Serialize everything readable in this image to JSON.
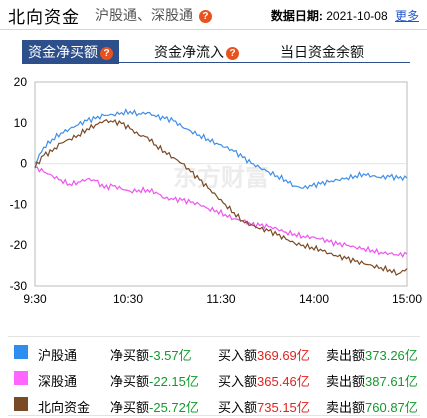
{
  "header": {
    "title": "北向资金",
    "links": "沪股通、深股通",
    "date_label": "数据日期:",
    "date_value": "2021-10-08",
    "more": "更多"
  },
  "tabs": [
    {
      "label": "资金净买额",
      "has_help": true,
      "active": true
    },
    {
      "label": "资金净流入",
      "has_help": true,
      "active": false
    },
    {
      "label": "当日资金余额",
      "has_help": false,
      "active": false
    }
  ],
  "help_glyph": "?",
  "chart_data": {
    "type": "line",
    "x_ticks": [
      "9:30",
      "10:30",
      "11:30",
      "14:00",
      "15:00"
    ],
    "y_ticks": [
      20,
      10,
      0,
      -10,
      -20,
      -30
    ],
    "ylim": [
      -30,
      20
    ],
    "watermark": "东方财富",
    "series": [
      {
        "name": "沪股通",
        "color": "#3f8fe8",
        "points": [
          [
            0,
            0
          ],
          [
            1,
            4
          ],
          [
            2,
            6
          ],
          [
            3,
            7.5
          ],
          [
            4,
            8.5
          ],
          [
            5,
            9.5
          ],
          [
            6,
            10.5
          ],
          [
            7,
            11
          ],
          [
            8,
            11.8
          ],
          [
            9,
            12
          ],
          [
            10,
            12.5
          ],
          [
            11,
            12.8
          ],
          [
            12,
            12.2
          ],
          [
            13,
            12.5
          ],
          [
            14,
            11.5
          ],
          [
            15,
            11
          ],
          [
            16,
            10.5
          ],
          [
            17,
            9
          ],
          [
            18,
            8
          ],
          [
            19,
            7
          ],
          [
            20,
            6
          ],
          [
            21,
            5
          ],
          [
            22,
            4
          ],
          [
            23,
            3
          ],
          [
            24,
            1.5
          ],
          [
            25,
            0
          ],
          [
            26,
            -1
          ],
          [
            27,
            -2
          ],
          [
            28,
            -3
          ],
          [
            29,
            -4
          ],
          [
            30,
            -5.5
          ],
          [
            31,
            -6
          ],
          [
            32,
            -5.5
          ],
          [
            33,
            -5
          ],
          [
            34,
            -4.5
          ],
          [
            35,
            -4
          ],
          [
            36,
            -3.5
          ],
          [
            37,
            -3
          ],
          [
            38,
            -2.5
          ],
          [
            39,
            -3
          ],
          [
            40,
            -3.5
          ],
          [
            41,
            -3.2
          ],
          [
            42,
            -3.6
          ],
          [
            43,
            -3.57
          ]
        ]
      },
      {
        "name": "深股通",
        "color": "#ee55ee",
        "points": [
          [
            0,
            -1
          ],
          [
            1,
            -2
          ],
          [
            2,
            -3
          ],
          [
            3,
            -4
          ],
          [
            4,
            -5
          ],
          [
            5,
            -4.5
          ],
          [
            6,
            -3.8
          ],
          [
            7,
            -4.2
          ],
          [
            8,
            -6
          ],
          [
            9,
            -5.5
          ],
          [
            10,
            -6.2
          ],
          [
            11,
            -6.8
          ],
          [
            12,
            -6.5
          ],
          [
            13,
            -6.4
          ],
          [
            14,
            -7
          ],
          [
            15,
            -8.5
          ],
          [
            16,
            -8.8
          ],
          [
            17,
            -9
          ],
          [
            18,
            -9.5
          ],
          [
            19,
            -10
          ],
          [
            20,
            -11
          ],
          [
            21,
            -11.5
          ],
          [
            22,
            -12.5
          ],
          [
            23,
            -13.5
          ],
          [
            24,
            -14
          ],
          [
            25,
            -15
          ],
          [
            26,
            -15.2
          ],
          [
            27,
            -15.5
          ],
          [
            28,
            -16
          ],
          [
            29,
            -16.8
          ],
          [
            30,
            -17.2
          ],
          [
            31,
            -17.8
          ],
          [
            32,
            -18
          ],
          [
            33,
            -18.5
          ],
          [
            34,
            -19.2
          ],
          [
            35,
            -19.8
          ],
          [
            36,
            -20
          ],
          [
            37,
            -20.5
          ],
          [
            38,
            -20.8
          ],
          [
            39,
            -21.2
          ],
          [
            40,
            -21.8
          ],
          [
            41,
            -22
          ],
          [
            42,
            -22.5
          ],
          [
            43,
            -22.15
          ]
        ]
      },
      {
        "name": "北向资金",
        "color": "#7a4a25",
        "points": [
          [
            0,
            -1
          ],
          [
            1,
            2
          ],
          [
            2,
            3
          ],
          [
            3,
            5
          ],
          [
            4,
            6
          ],
          [
            5,
            7
          ],
          [
            6,
            8.5
          ],
          [
            7,
            9.5
          ],
          [
            8,
            10.5
          ],
          [
            9,
            10.2
          ],
          [
            10,
            9.8
          ],
          [
            11,
            8.5
          ],
          [
            12,
            7
          ],
          [
            13,
            6.5
          ],
          [
            14,
            4.5
          ],
          [
            15,
            3
          ],
          [
            16,
            1.5
          ],
          [
            17,
            0
          ],
          [
            18,
            -2
          ],
          [
            19,
            -4
          ],
          [
            20,
            -6
          ],
          [
            21,
            -8
          ],
          [
            22,
            -10
          ],
          [
            23,
            -12
          ],
          [
            24,
            -14
          ],
          [
            25,
            -15
          ],
          [
            26,
            -16
          ],
          [
            27,
            -16.5
          ],
          [
            28,
            -17.5
          ],
          [
            29,
            -18.5
          ],
          [
            30,
            -19.5
          ],
          [
            31,
            -20
          ],
          [
            32,
            -20.5
          ],
          [
            33,
            -21
          ],
          [
            34,
            -22
          ],
          [
            35,
            -22.8
          ],
          [
            36,
            -23.3
          ],
          [
            37,
            -24
          ],
          [
            38,
            -24.5
          ],
          [
            39,
            -25
          ],
          [
            40,
            -25.5
          ],
          [
            41,
            -26
          ],
          [
            42,
            -27
          ],
          [
            43,
            -25.72
          ]
        ]
      }
    ]
  },
  "legend": [
    {
      "name": "沪股通",
      "color": "#2d8ef0",
      "net_label": "净买额",
      "net_value": "-3.57亿",
      "net_positive": false,
      "buy_label": "买入额",
      "buy_value": "369.69亿",
      "sell_label": "卖出额",
      "sell_value": "373.26亿"
    },
    {
      "name": "深股通",
      "color": "#ff66ff",
      "net_label": "净买额",
      "net_value": "-22.15亿",
      "net_positive": false,
      "buy_label": "买入额",
      "buy_value": "365.46亿",
      "sell_label": "卖出额",
      "sell_value": "387.61亿"
    },
    {
      "name": "北向资金",
      "color": "#7a4a25",
      "net_label": "净买额",
      "net_value": "-25.72亿",
      "net_positive": false,
      "buy_label": "买入额",
      "buy_value": "735.15亿",
      "sell_label": "卖出额",
      "sell_value": "760.87亿"
    }
  ]
}
